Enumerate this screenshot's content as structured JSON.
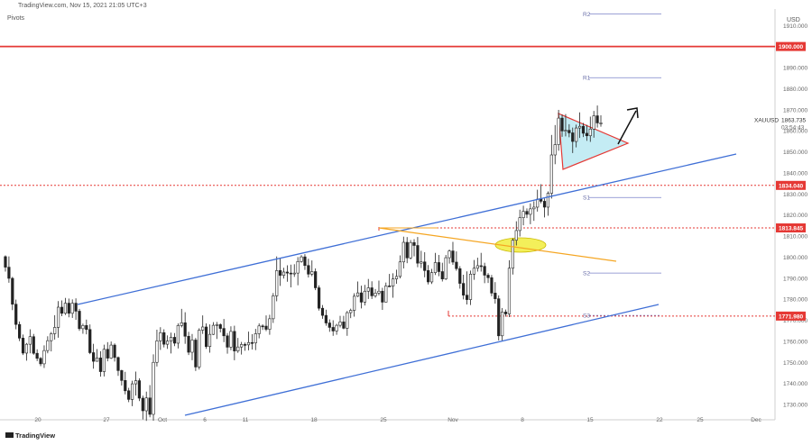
{
  "header": {
    "source_line": "TradingView.com, Nov 15, 2021 21:05 UTC+3",
    "indicator": "Pivots",
    "currency": "USD"
  },
  "footer": {
    "logo_text": "TradingView"
  },
  "colors": {
    "up": "#26a69a",
    "down": "#ef5350",
    "candle": "#222222",
    "red_level": "#e53935",
    "channel": "#3f6fd6",
    "orange": "#f5a623",
    "pivot": "#7b82c9",
    "triangle_fill": "#c4ecf4",
    "ellipse": "#f3ef5a"
  },
  "chart_data": {
    "type": "candlestick",
    "symbol": "XAUUSD",
    "last_price": "1863.735",
    "countdown": "03:54:43",
    "y_axis": {
      "min": 1725,
      "max": 1933,
      "ticks": [
        "1730.000",
        "1740.000",
        "1750.000",
        "1760.000",
        "1770.000",
        "1780.000",
        "1790.000",
        "1800.000",
        "1810.000",
        "1820.000",
        "1830.000",
        "1840.000",
        "1850.000",
        "1860.000",
        "1870.000",
        "1880.000",
        "1890.000",
        "1910.000"
      ]
    },
    "x_axis": {
      "ticks": [
        "20",
        "27",
        "Oct",
        "6",
        "11",
        "18",
        "25",
        "Nov",
        "8",
        "15",
        "22",
        "25",
        "Dec"
      ]
    },
    "pivots": [
      {
        "label": "R2",
        "value": 1915.5
      },
      {
        "label": "R1",
        "value": 1885.2
      },
      {
        "label": "S1",
        "value": 1828.3
      },
      {
        "label": "S2",
        "value": 1792.4
      },
      {
        "label": "S3",
        "value": 1772.3
      }
    ],
    "key_levels": [
      "1900.000",
      "1834.040",
      "1813.845",
      "1771.980"
    ],
    "candles": [
      [
        1800.2,
        1800.8,
        1793.1,
        1795.2
      ],
      [
        1795.2,
        1800.3,
        1787.8,
        1789.9
      ],
      [
        1789.9,
        1790.6,
        1774.8,
        1777.6
      ],
      [
        1777.6,
        1779.8,
        1765.7,
        1768.0
      ],
      [
        1768.0,
        1769.4,
        1760.1,
        1761.5
      ],
      [
        1761.5,
        1763.2,
        1753.5,
        1754.4
      ],
      [
        1754.4,
        1759.2,
        1750.8,
        1758.6
      ],
      [
        1758.6,
        1765.7,
        1754.3,
        1762.2
      ],
      [
        1762.2,
        1763.5,
        1753.6,
        1754.3
      ],
      [
        1754.3,
        1756.2,
        1750.6,
        1751.9
      ],
      [
        1751.9,
        1752.5,
        1748.2,
        1749.3
      ],
      [
        1749.3,
        1758.1,
        1747.3,
        1755.6
      ],
      [
        1755.6,
        1762.4,
        1754.3,
        1760.3
      ],
      [
        1760.3,
        1764.4,
        1755.2,
        1763.6
      ],
      [
        1763.6,
        1772.4,
        1760.8,
        1766.6
      ],
      [
        1766.6,
        1779.1,
        1761.7,
        1776.2
      ],
      [
        1776.2,
        1779.4,
        1771.9,
        1773.3
      ],
      [
        1773.3,
        1780.6,
        1772.5,
        1778.1
      ],
      [
        1778.1,
        1780.3,
        1771.4,
        1773.3
      ],
      [
        1773.3,
        1779.9,
        1771.1,
        1778.1
      ],
      [
        1778.1,
        1780.4,
        1770.2,
        1774.3
      ],
      [
        1774.3,
        1775.4,
        1765.0,
        1766.0
      ],
      [
        1766.0,
        1768.4,
        1763.6,
        1767.5
      ],
      [
        1767.5,
        1770.3,
        1763.3,
        1765.6
      ],
      [
        1765.6,
        1768.0,
        1753.9,
        1754.6
      ],
      [
        1754.6,
        1758.8,
        1747.0,
        1750.5
      ],
      [
        1750.5,
        1756.3,
        1750.3,
        1752.1
      ],
      [
        1752.1,
        1755.3,
        1743.2,
        1745.6
      ],
      [
        1745.6,
        1758.4,
        1743.3,
        1756.2
      ],
      [
        1756.2,
        1759.6,
        1750.5,
        1752.0
      ],
      [
        1752.0,
        1759.9,
        1751.6,
        1758.2
      ],
      [
        1758.2,
        1759.0,
        1750.4,
        1752.3
      ],
      [
        1752.3,
        1752.8,
        1743.6,
        1746.1
      ],
      [
        1746.1,
        1746.5,
        1739.0,
        1741.4
      ],
      [
        1741.4,
        1745.5,
        1734.8,
        1736.5
      ],
      [
        1736.5,
        1737.9,
        1731.1,
        1732.4
      ],
      [
        1732.4,
        1741.3,
        1729.2,
        1739.8
      ],
      [
        1739.8,
        1745.6,
        1734.2,
        1741.3
      ],
      [
        1741.3,
        1742.4,
        1731.6,
        1733.0
      ],
      [
        1733.0,
        1734.2,
        1722.9,
        1727.0
      ],
      [
        1727.0,
        1736.1,
        1722.2,
        1733.1
      ],
      [
        1733.1,
        1739.2,
        1723.9,
        1725.3
      ],
      [
        1725.3,
        1753.8,
        1722.3,
        1750.0
      ],
      [
        1750.0,
        1765.5,
        1748.0,
        1760.2
      ],
      [
        1760.2,
        1766.7,
        1755.9,
        1764.1
      ],
      [
        1764.1,
        1765.7,
        1757.1,
        1758.6
      ],
      [
        1758.6,
        1762.8,
        1756.4,
        1760.1
      ],
      [
        1760.1,
        1764.1,
        1754.2,
        1761.9
      ],
      [
        1761.9,
        1763.9,
        1757.7,
        1759.1
      ],
      [
        1759.1,
        1768.5,
        1756.6,
        1767.5
      ],
      [
        1767.5,
        1775.4,
        1766.6,
        1768.8
      ],
      [
        1768.8,
        1773.8,
        1758.8,
        1762.4
      ],
      [
        1762.4,
        1764.5,
        1753.5,
        1754.8
      ],
      [
        1754.8,
        1763.5,
        1751.0,
        1760.6
      ],
      [
        1760.6,
        1761.6,
        1745.9,
        1747.8
      ],
      [
        1747.8,
        1766.2,
        1746.6,
        1765.3
      ],
      [
        1765.3,
        1772.3,
        1763.5,
        1766.8
      ],
      [
        1766.8,
        1768.5,
        1756.4,
        1757.5
      ],
      [
        1757.5,
        1768.0,
        1754.6,
        1763.3
      ],
      [
        1763.3,
        1769.1,
        1763.0,
        1767.6
      ],
      [
        1767.6,
        1769.2,
        1761.1,
        1767.9
      ],
      [
        1767.9,
        1768.5,
        1764.2,
        1766.1
      ],
      [
        1766.1,
        1770.6,
        1759.6,
        1762.6
      ],
      [
        1762.6,
        1763.9,
        1754.1,
        1757.2
      ],
      [
        1757.2,
        1767.1,
        1755.8,
        1764.7
      ],
      [
        1764.7,
        1767.4,
        1751.0,
        1755.4
      ],
      [
        1755.4,
        1761.6,
        1754.5,
        1757.3
      ],
      [
        1757.3,
        1759.7,
        1753.7,
        1758.5
      ],
      [
        1758.5,
        1759.4,
        1755.5,
        1758.3
      ],
      [
        1758.3,
        1764.6,
        1755.7,
        1759.4
      ],
      [
        1759.4,
        1763.4,
        1756.1,
        1759.2
      ],
      [
        1759.2,
        1765.9,
        1755.8,
        1763.6
      ],
      [
        1763.6,
        1768.5,
        1761.4,
        1767.3
      ],
      [
        1767.3,
        1768.1,
        1765.4,
        1767.2
      ],
      [
        1767.2,
        1772.3,
        1764.8,
        1765.7
      ],
      [
        1765.7,
        1772.6,
        1763.1,
        1770.7
      ],
      [
        1770.7,
        1782.9,
        1768.7,
        1781.6
      ],
      [
        1781.6,
        1800.3,
        1779.0,
        1793.6
      ],
      [
        1793.6,
        1799.3,
        1786.3,
        1791.3
      ],
      [
        1791.3,
        1794.9,
        1789.8,
        1792.9
      ],
      [
        1792.9,
        1796.1,
        1788.3,
        1792.4
      ],
      [
        1792.4,
        1796.4,
        1785.6,
        1792.3
      ],
      [
        1792.3,
        1796.6,
        1790.6,
        1792.4
      ],
      [
        1792.4,
        1800.0,
        1786.6,
        1797.9
      ],
      [
        1797.9,
        1800.9,
        1797.3,
        1800.1
      ],
      [
        1800.1,
        1801.4,
        1793.9,
        1796.0
      ],
      [
        1796.0,
        1799.2,
        1790.3,
        1791.9
      ],
      [
        1791.9,
        1798.4,
        1790.9,
        1793.1
      ],
      [
        1793.1,
        1794.6,
        1784.3,
        1785.4
      ],
      [
        1785.4,
        1786.6,
        1774.6,
        1775.7
      ],
      [
        1775.7,
        1777.2,
        1770.7,
        1772.3
      ],
      [
        1772.3,
        1775.0,
        1767.4,
        1768.7
      ],
      [
        1768.7,
        1770.4,
        1764.5,
        1766.6
      ],
      [
        1766.6,
        1770.0,
        1762.6,
        1764.9
      ],
      [
        1764.9,
        1768.3,
        1763.1,
        1767.6
      ],
      [
        1767.6,
        1772.1,
        1766.6,
        1769.2
      ],
      [
        1769.2,
        1772.1,
        1765.7,
        1766.2
      ],
      [
        1766.2,
        1774.4,
        1762.6,
        1773.6
      ],
      [
        1773.6,
        1775.5,
        1771.0,
        1774.7
      ],
      [
        1774.7,
        1782.8,
        1771.7,
        1781.4
      ],
      [
        1781.4,
        1788.4,
        1781.0,
        1783.0
      ],
      [
        1783.0,
        1786.4,
        1775.6,
        1778.6
      ],
      [
        1778.6,
        1786.8,
        1777.0,
        1783.8
      ],
      [
        1783.8,
        1789.6,
        1780.1,
        1785.4
      ],
      [
        1785.4,
        1788.5,
        1780.1,
        1781.6
      ],
      [
        1781.6,
        1784.8,
        1780.7,
        1782.9
      ],
      [
        1782.9,
        1788.8,
        1781.8,
        1783.8
      ],
      [
        1783.8,
        1785.4,
        1774.9,
        1778.6
      ],
      [
        1778.6,
        1787.9,
        1778.5,
        1786.3
      ],
      [
        1786.3,
        1792.0,
        1785.9,
        1786.2
      ],
      [
        1786.2,
        1792.3,
        1780.7,
        1789.6
      ],
      [
        1789.6,
        1794.0,
        1787.3,
        1790.8
      ],
      [
        1790.8,
        1800.8,
        1789.9,
        1797.7
      ],
      [
        1797.7,
        1809.7,
        1794.6,
        1807.0
      ],
      [
        1807.0,
        1809.5,
        1797.1,
        1799.6
      ],
      [
        1799.6,
        1808.1,
        1798.9,
        1806.9
      ],
      [
        1806.9,
        1808.5,
        1800.3,
        1805.5
      ],
      [
        1805.5,
        1809.5,
        1795.2,
        1797.1
      ],
      [
        1797.1,
        1803.0,
        1794.8,
        1797.7
      ],
      [
        1797.7,
        1802.3,
        1790.4,
        1793.6
      ],
      [
        1793.6,
        1796.2,
        1787.0,
        1788.2
      ],
      [
        1788.2,
        1794.4,
        1787.2,
        1792.6
      ],
      [
        1792.6,
        1802.0,
        1791.5,
        1797.4
      ],
      [
        1797.4,
        1801.0,
        1790.9,
        1793.1
      ],
      [
        1793.1,
        1797.3,
        1788.4,
        1789.6
      ],
      [
        1789.6,
        1801.0,
        1789.1,
        1799.7
      ],
      [
        1799.7,
        1803.6,
        1796.9,
        1802.9
      ],
      [
        1802.9,
        1807.2,
        1796.3,
        1797.6
      ],
      [
        1797.6,
        1802.7,
        1793.5,
        1794.5
      ],
      [
        1794.5,
        1795.7,
        1785.0,
        1787.5
      ],
      [
        1787.5,
        1791.6,
        1779.9,
        1781.9
      ],
      [
        1781.9,
        1793.2,
        1777.5,
        1779.8
      ],
      [
        1779.8,
        1793.6,
        1777.2,
        1791.9
      ],
      [
        1791.9,
        1798.6,
        1789.2,
        1794.7
      ],
      [
        1794.7,
        1799.7,
        1793.1,
        1795.9
      ],
      [
        1795.9,
        1802.0,
        1793.1,
        1795.6
      ],
      [
        1795.6,
        1797.3,
        1787.6,
        1791.4
      ],
      [
        1791.4,
        1792.4,
        1787.7,
        1790.2
      ],
      [
        1790.2,
        1791.5,
        1781.4,
        1782.9
      ],
      [
        1782.9,
        1788.1,
        1777.9,
        1780.2
      ],
      [
        1780.2,
        1781.8,
        1760.4,
        1762.6
      ],
      [
        1762.6,
        1775.8,
        1760.2,
        1773.9
      ],
      [
        1773.9,
        1775.1,
        1771.7,
        1773.0
      ],
      [
        1773.0,
        1798.5,
        1771.5,
        1794.7
      ],
      [
        1794.7,
        1808.9,
        1791.7,
        1808.0
      ],
      [
        1808.0,
        1817.0,
        1805.5,
        1812.6
      ],
      [
        1812.6,
        1822.5,
        1809.8,
        1818.7
      ],
      [
        1818.7,
        1824.4,
        1815.1,
        1821.7
      ],
      [
        1821.7,
        1823.1,
        1818.5,
        1820.3
      ],
      [
        1820.3,
        1825.5,
        1815.6,
        1822.9
      ],
      [
        1822.9,
        1826.5,
        1817.2,
        1823.7
      ],
      [
        1823.7,
        1832.0,
        1821.6,
        1827.5
      ],
      [
        1827.5,
        1834.6,
        1825.5,
        1826.5
      ],
      [
        1826.5,
        1827.8,
        1818.8,
        1823.7
      ],
      [
        1823.7,
        1831.2,
        1819.6,
        1830.3
      ],
      [
        1830.3,
        1858.0,
        1827.8,
        1848.5
      ],
      [
        1848.5,
        1862.7,
        1844.1,
        1853.4
      ],
      [
        1853.4,
        1869.9,
        1850.5,
        1866.0
      ],
      [
        1866.0,
        1867.7,
        1857.1,
        1859.9
      ],
      [
        1859.9,
        1867.9,
        1857.3,
        1860.2
      ],
      [
        1860.2,
        1863.1,
        1856.9,
        1859.0
      ],
      [
        1859.0,
        1861.5,
        1849.4,
        1854.9
      ],
      [
        1854.9,
        1862.9,
        1852.1,
        1861.3
      ],
      [
        1861.3,
        1868.7,
        1856.6,
        1862.1
      ],
      [
        1862.1,
        1863.7,
        1857.0,
        1858.8
      ],
      [
        1858.8,
        1862.8,
        1855.2,
        1857.6
      ],
      [
        1857.6,
        1866.7,
        1854.7,
        1860.8
      ],
      [
        1860.8,
        1869.4,
        1856.7,
        1867.1
      ],
      [
        1867.1,
        1872.0,
        1861.5,
        1863.7
      ],
      [
        1863.7,
        1867.3,
        1861.9,
        1863.7
      ]
    ]
  }
}
